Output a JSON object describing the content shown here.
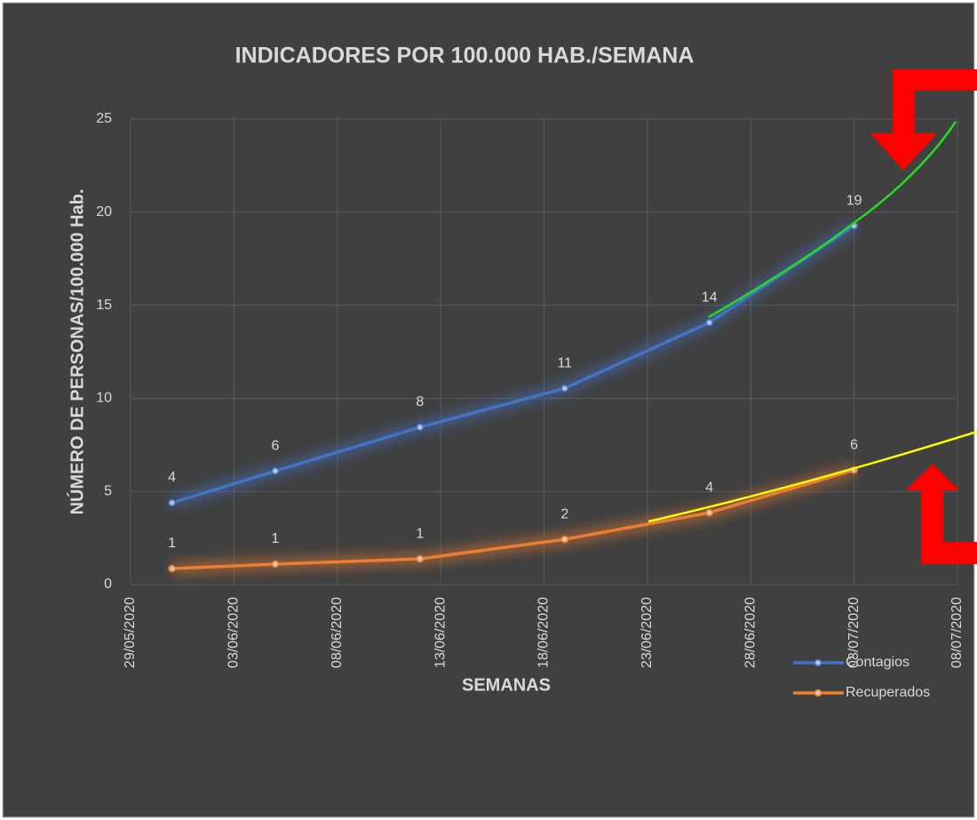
{
  "chart_data": {
    "type": "line",
    "title": "INDICADORES POR 100.000 HAB./SEMANA",
    "x_label": "SEMANAS",
    "y_label": "NÚMERO DE PERSONAS/100.000 Hab.",
    "x": [
      "2020-05-31",
      "2020-06-05",
      "2020-06-12",
      "2020-06-19",
      "2020-06-26",
      "2020-07-03"
    ],
    "series": [
      {
        "name": "Contagios",
        "color": "#4472c4",
        "values": [
          4.39,
          6.1,
          8.45,
          10.54,
          14.07,
          19.27
        ],
        "value_labels": [
          "4",
          "6",
          "8",
          "11",
          "14",
          "19"
        ]
      },
      {
        "name": "Recuperados",
        "color": "#ed7d31",
        "values": [
          0.86,
          1.1,
          1.38,
          2.43,
          3.86,
          6.15
        ],
        "value_labels": [
          "1",
          "1",
          "1",
          "2",
          "4",
          "6"
        ]
      }
    ],
    "xlim": [
      "2020-05-29",
      "2020-07-08"
    ],
    "xticks": [
      {
        "value": "2020-05-29",
        "label": "29/05/2020"
      },
      {
        "value": "2020-06-03",
        "label": "03/06/2020"
      },
      {
        "value": "2020-06-08",
        "label": "08/06/2020"
      },
      {
        "value": "2020-06-13",
        "label": "13/06/2020"
      },
      {
        "value": "2020-06-18",
        "label": "18/06/2020"
      },
      {
        "value": "2020-06-23",
        "label": "23/06/2020"
      },
      {
        "value": "2020-06-28",
        "label": "28/06/2020"
      },
      {
        "value": "2020-07-03",
        "label": "03/07/2020"
      },
      {
        "value": "2020-07-08",
        "label": "08/07/2020"
      }
    ],
    "ylim": [
      0,
      25
    ],
    "yticks": [
      0,
      5,
      10,
      15,
      20,
      25
    ],
    "grid": true,
    "legend": "bottom-right"
  }
}
